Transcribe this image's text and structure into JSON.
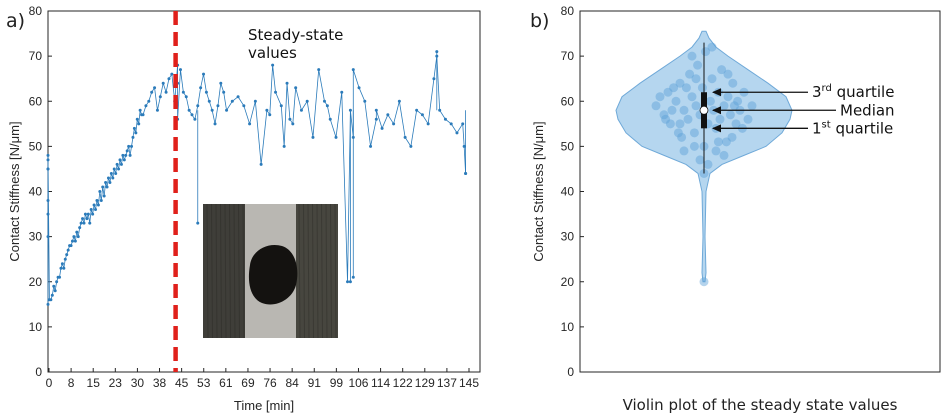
{
  "chart_data": [
    {
      "panel": "a)",
      "type": "line",
      "xlabel": "Time [min]",
      "ylabel": "Contact Stiffness [N/μm]",
      "xlim": [
        0,
        150
      ],
      "ylim": [
        0,
        80
      ],
      "xticks": [
        "0",
        "8",
        "15",
        "23",
        "30",
        "38",
        "45",
        "53",
        "61",
        "69",
        "76",
        "84",
        "91",
        "99",
        "106",
        "114",
        "122",
        "129",
        "137",
        "145"
      ],
      "yticks": [
        "0",
        "10",
        "20",
        "30",
        "40",
        "50",
        "60",
        "70",
        "80"
      ],
      "annotation": "Steady-state values",
      "marker_line_x": 45,
      "series_color": "#2b7bba",
      "threshold_color": "#e0201b",
      "series": [
        {
          "x": [
            0,
            0,
            0,
            0,
            0,
            0,
            0,
            0,
            0.5,
            1,
            1.5,
            2,
            2.5,
            3,
            3.5,
            4,
            4.5,
            5,
            5.5,
            6,
            6.5,
            7,
            7.5,
            8,
            8.5,
            9,
            9.5,
            10,
            10.5,
            11,
            11.5,
            12,
            12.5,
            13,
            13.5,
            14,
            14.5,
            15,
            15.5,
            16,
            16.5,
            17,
            17.5,
            18,
            18.5,
            19,
            19.5,
            20,
            20.5,
            21,
            21.5,
            22,
            22.5,
            23,
            23.5,
            24,
            24.5,
            25,
            25.5,
            26,
            26.5,
            27,
            27.5,
            28,
            28.5,
            29,
            29.5,
            30,
            30.5,
            31,
            31.5,
            32,
            32.5,
            33,
            34,
            35,
            36,
            37,
            38,
            39,
            40,
            41,
            42,
            43,
            44,
            45,
            45,
            45,
            46,
            47,
            48,
            49,
            50,
            51,
            52,
            53,
            54,
            55,
            56,
            57,
            58,
            59,
            60,
            61,
            62,
            64,
            66,
            68,
            70,
            72,
            74,
            76,
            77,
            78,
            79,
            81,
            82,
            83,
            84,
            85,
            86,
            88,
            90,
            92,
            94,
            96,
            97,
            98,
            100,
            102,
            104,
            105,
            106,
            106,
            108,
            110,
            112,
            114,
            114,
            116,
            118,
            120,
            122,
            124,
            126,
            128,
            130,
            132,
            134,
            135,
            136,
            138,
            140,
            142,
            144,
            144.5,
            145
          ],
          "y": [
            45,
            47,
            15,
            30,
            38,
            45,
            35,
            48,
            16,
            16,
            17,
            19,
            18,
            20,
            21,
            21,
            23,
            24,
            23,
            25,
            26,
            27,
            28,
            28,
            29,
            30,
            29,
            31,
            30,
            32,
            33,
            34,
            33,
            35,
            34,
            35,
            33,
            36,
            35,
            37,
            36,
            38,
            37,
            40,
            38,
            41,
            39,
            42,
            41,
            43,
            42,
            44,
            43,
            45,
            44,
            46,
            45,
            47,
            46,
            48,
            47,
            48,
            49,
            50,
            48,
            50,
            52,
            54,
            53,
            56,
            55,
            58,
            57,
            57,
            59,
            60,
            62,
            63,
            58,
            61,
            64,
            62,
            65,
            66,
            60,
            68,
            64,
            56,
            67,
            62,
            61,
            58,
            57,
            56,
            59,
            63,
            66,
            62,
            60,
            58,
            55,
            59,
            64,
            62,
            58,
            60,
            61,
            59,
            55,
            60,
            46,
            58,
            57,
            68,
            62,
            59,
            50,
            64,
            56,
            55,
            63,
            58,
            60,
            52,
            67,
            60,
            59,
            56,
            52,
            62,
            20,
            58,
            52,
            67,
            63,
            60,
            50,
            56,
            58,
            54,
            57,
            55,
            60,
            52,
            50,
            58,
            57,
            55,
            65,
            70,
            58,
            56,
            55,
            53,
            55,
            50,
            44
          ],
          "spikes": [
            [
              52,
              33
            ],
            [
              105,
              20
            ],
            [
              106,
              21
            ],
            [
              135,
              71
            ],
            [
              145,
              44
            ]
          ]
        }
      ]
    },
    {
      "panel": "b)",
      "type": "violin",
      "xlabel": "Violin plot of the steady state values",
      "ylabel": "Contact Stiffness [N/μm]",
      "ylim": [
        0,
        80
      ],
      "yticks": [
        "0",
        "10",
        "20",
        "30",
        "40",
        "50",
        "60",
        "70",
        "80"
      ],
      "fill_color": "#9cc8ea",
      "point_color": "#5aa0d6",
      "min": 20,
      "max": 73,
      "q1": 54,
      "median": 58,
      "q3": 62,
      "annotations": {
        "q3": "3rd quartile",
        "median": "Median",
        "q1": "1st quartile"
      },
      "points": [
        [
          -0.6,
          59
        ],
        [
          -0.5,
          57
        ],
        [
          -0.45,
          62
        ],
        [
          -0.42,
          55
        ],
        [
          -0.35,
          60
        ],
        [
          -0.3,
          64
        ],
        [
          -0.28,
          52
        ],
        [
          -0.25,
          58
        ],
        [
          -0.2,
          56
        ],
        [
          -0.18,
          66
        ],
        [
          -0.15,
          61
        ],
        [
          -0.12,
          53
        ],
        [
          -0.1,
          59
        ],
        [
          -0.08,
          68
        ],
        [
          -0.05,
          57
        ],
        [
          -0.02,
          63
        ],
        [
          0.0,
          50
        ],
        [
          0.02,
          71
        ],
        [
          0.05,
          55
        ],
        [
          0.08,
          60
        ],
        [
          0.1,
          65
        ],
        [
          0.12,
          58
        ],
        [
          0.15,
          54
        ],
        [
          0.18,
          62
        ],
        [
          0.2,
          56
        ],
        [
          0.22,
          67
        ],
        [
          0.25,
          59
        ],
        [
          0.28,
          51
        ],
        [
          0.3,
          61
        ],
        [
          0.33,
          57
        ],
        [
          0.36,
          64
        ],
        [
          0.4,
          55
        ],
        [
          0.42,
          60
        ],
        [
          0.45,
          58
        ],
        [
          0.5,
          62
        ],
        [
          0.55,
          56
        ],
        [
          0.6,
          59
        ],
        [
          -0.55,
          61
        ],
        [
          -0.4,
          58
        ],
        [
          -0.3,
          55
        ],
        [
          -0.22,
          63
        ],
        [
          -0.12,
          50
        ],
        [
          -0.05,
          47
        ],
        [
          0.05,
          46
        ],
        [
          0.15,
          49
        ],
        [
          0.25,
          48
        ],
        [
          0.35,
          52
        ],
        [
          -0.15,
          70
        ],
        [
          0.1,
          72
        ],
        [
          0.0,
          44
        ],
        [
          0.0,
          20
        ],
        [
          -0.38,
          63
        ],
        [
          0.48,
          54
        ],
        [
          -0.48,
          56
        ],
        [
          0.3,
          66
        ],
        [
          -0.25,
          49
        ],
        [
          0.38,
          59
        ],
        [
          -0.1,
          65
        ],
        [
          0.18,
          51
        ],
        [
          -0.32,
          53
        ]
      ]
    }
  ],
  "inset_image": "microscope-photo"
}
